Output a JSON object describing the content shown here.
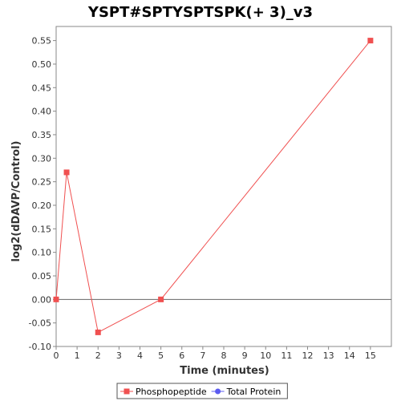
{
  "chart_data": {
    "type": "line",
    "title": "YSPT#SPTYSPTSPK(+ 3)_v3",
    "xlabel": "Time (minutes)",
    "ylabel": "log2(dDAVP/Control)",
    "xlim": [
      0,
      16
    ],
    "ylim": [
      -0.1,
      0.58
    ],
    "x_ticks": [
      0,
      1,
      2,
      3,
      4,
      5,
      6,
      7,
      8,
      9,
      10,
      11,
      12,
      13,
      14,
      15
    ],
    "y_ticks": [
      -0.1,
      -0.05,
      0.0,
      0.05,
      0.1,
      0.15,
      0.2,
      0.25,
      0.3,
      0.35,
      0.4,
      0.45,
      0.5,
      0.55
    ],
    "y_tick_labels": [
      "-0.10",
      "-0.05",
      "0.00",
      "0.05",
      "0.10",
      "0.15",
      "0.20",
      "0.25",
      "0.30",
      "0.35",
      "0.40",
      "0.45",
      "0.50",
      "0.55"
    ],
    "grid": false,
    "legend_position": "bottom-center",
    "series": [
      {
        "name": "Phosphopeptide",
        "color": "#f05050",
        "marker": "square",
        "x": [
          0,
          0.5,
          2,
          5,
          15
        ],
        "y": [
          0.0,
          0.27,
          -0.07,
          0.0,
          0.55
        ]
      },
      {
        "name": "Total Protein",
        "color": "#5b5bf0",
        "marker": "circle",
        "x": [],
        "y": []
      }
    ]
  }
}
